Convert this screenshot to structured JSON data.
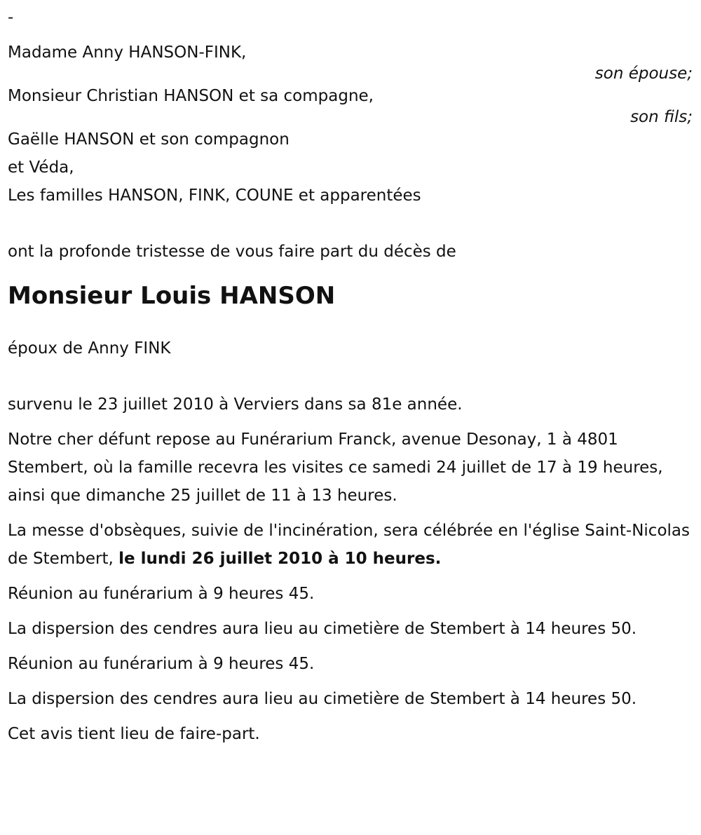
{
  "dash": "-",
  "family": [
    {
      "name": "Madame Anny HANSON-FINK,",
      "role": "son épouse;"
    },
    {
      "name": "Monsieur Christian HANSON et sa compagne,",
      "role": "son fils;"
    }
  ],
  "others": [
    "Gaëlle HANSON et son compagnon",
    "et Véda,",
    "Les familles HANSON, FINK, COUNE et apparentées"
  ],
  "announce": "ont la profonde tristesse de vous faire part du décès de",
  "deceased": "Monsieur Louis HANSON",
  "spouse": "époux de Anny FINK",
  "paragraphs": {
    "died": "survenu le 23 juillet 2010 à Verviers dans sa 81e année.",
    "rest": "Notre cher défunt repose au Funérarium Franck, avenue Desonay, 1 à 4801 Stembert, où la famille recevra les visites ce samedi 24 juillet de 17 à 19 heures, ainsi que dimanche 25 juillet de 11 à 13 heures.",
    "mass_pre": "La messe d'obsèques, suivie de l'incinération, sera célébrée en l'église Saint-Nicolas de Stembert, ",
    "mass_bold": "le lundi 26 juillet 2010 à 10 heures.",
    "meeting1": "Réunion au funérarium à 9 heures 45.",
    "ashes1": "La dispersion des cendres aura lieu au cimetière de Stembert à 14 heures 50.",
    "meeting2": "Réunion au funérarium à 9 heures 45.",
    "ashes2": "La dispersion des cendres aura lieu au cimetière de Stembert à 14 heures 50.",
    "closing": "Cet avis tient lieu de faire-part."
  }
}
